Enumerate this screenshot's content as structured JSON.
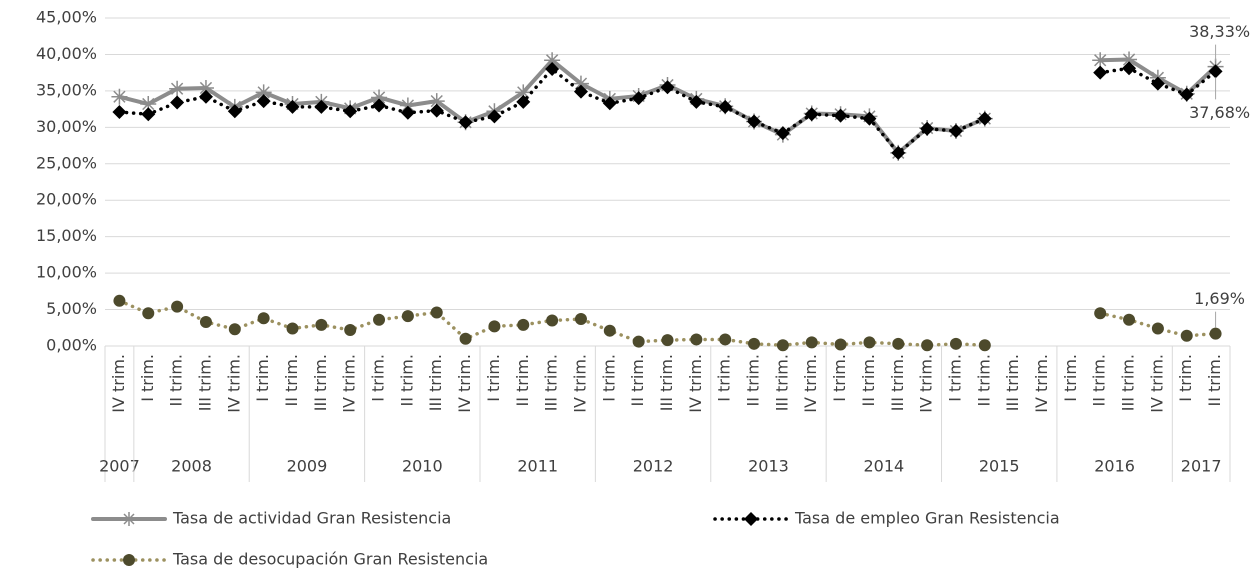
{
  "chart_data": {
    "type": "line",
    "categories": [
      "IV trim.",
      "I trim.",
      "II trim.",
      "III trim.",
      "IV trim.",
      "I trim.",
      "II trim.",
      "III trim.",
      "IV trim.",
      "I trim.",
      "II trim.",
      "III trim.",
      "IV trim.",
      "I trim.",
      "II trim.",
      "III trim.",
      "IV trim.",
      "I trim.",
      "II trim.",
      "III trim.",
      "IV trim.",
      "I trim.",
      "II trim.",
      "III trim.",
      "IV trim.",
      "I trim.",
      "II trim.",
      "III trim.",
      "IV trim.",
      "I trim.",
      "II trim.",
      "III trim.",
      "IV trim.",
      "I trim.",
      "II trim.",
      "III trim.",
      "IV trim.",
      "I trim.",
      "II trim."
    ],
    "year_labels": [
      "2007",
      "2008",
      null,
      null,
      null,
      "2009",
      null,
      null,
      null,
      "2010",
      null,
      null,
      null,
      "2011",
      null,
      null,
      null,
      "2012",
      null,
      null,
      null,
      "2013",
      null,
      null,
      null,
      "2014",
      null,
      null,
      null,
      "2015",
      null,
      null,
      null,
      "2016",
      null,
      null,
      null,
      "2017",
      null
    ],
    "ylim": [
      0,
      45
    ],
    "yticks": [
      {
        "value": 0,
        "label": "0,00%"
      },
      {
        "value": 5,
        "label": "5,00%"
      },
      {
        "value": 10,
        "label": "10,00%"
      },
      {
        "value": 15,
        "label": "15,00%"
      },
      {
        "value": 20,
        "label": "20,00%"
      },
      {
        "value": 25,
        "label": "25,00%"
      },
      {
        "value": 30,
        "label": "30,00%"
      },
      {
        "value": 35,
        "label": "35,00%"
      },
      {
        "value": 40,
        "label": "40,00%"
      },
      {
        "value": 45,
        "label": "45,00%"
      }
    ],
    "grid": true,
    "series": [
      {
        "name": "Tasa de actividad Gran Resistencia",
        "color": "#8c8c8c",
        "values": [
          34.2,
          33.2,
          35.3,
          35.4,
          32.8,
          34.8,
          33.2,
          33.5,
          32.6,
          34.1,
          33.0,
          33.6,
          30.7,
          32.2,
          34.8,
          39.2,
          36.0,
          33.9,
          34.3,
          35.8,
          33.9,
          32.9,
          30.8,
          29.0,
          31.9,
          31.8,
          31.5,
          26.5,
          29.9,
          29.5,
          31.2,
          null,
          null,
          null,
          39.2,
          39.3,
          36.8,
          34.6,
          38.33
        ],
        "value_labels": [
          null,
          null,
          null,
          null,
          null,
          null,
          null,
          null,
          null,
          null,
          null,
          null,
          null,
          null,
          null,
          null,
          null,
          null,
          null,
          null,
          null,
          null,
          null,
          null,
          null,
          null,
          null,
          null,
          null,
          null,
          null,
          null,
          null,
          null,
          null,
          null,
          null,
          null,
          "38,33%"
        ]
      },
      {
        "name": "Tasa de empleo Gran Resistencia",
        "color": "#000000",
        "values": [
          32.1,
          31.8,
          33.4,
          34.2,
          32.2,
          33.6,
          32.8,
          32.8,
          32.2,
          33.0,
          32.0,
          32.3,
          30.7,
          31.5,
          33.5,
          38.0,
          34.9,
          33.3,
          34.0,
          35.5,
          33.5,
          32.8,
          30.8,
          29.2,
          31.8,
          31.6,
          31.2,
          26.5,
          29.8,
          29.5,
          31.2,
          null,
          null,
          null,
          37.5,
          38.1,
          36.0,
          34.5,
          37.68
        ],
        "value_labels": [
          null,
          null,
          null,
          null,
          null,
          null,
          null,
          null,
          null,
          null,
          null,
          null,
          null,
          null,
          null,
          null,
          null,
          null,
          null,
          null,
          null,
          null,
          null,
          null,
          null,
          null,
          null,
          null,
          null,
          null,
          null,
          null,
          null,
          null,
          null,
          null,
          null,
          null,
          "37,68%"
        ]
      },
      {
        "name": "Tasa de desocupación Gran Resistencia",
        "color": "#9c9160",
        "values": [
          6.2,
          4.5,
          5.4,
          3.3,
          2.3,
          3.8,
          2.4,
          2.9,
          2.2,
          3.6,
          4.1,
          4.6,
          1.0,
          2.7,
          2.9,
          3.5,
          3.7,
          2.1,
          0.6,
          0.8,
          0.9,
          0.9,
          0.3,
          0.1,
          0.5,
          0.2,
          0.5,
          0.3,
          0.1,
          0.3,
          0.1,
          null,
          null,
          null,
          4.5,
          3.6,
          2.4,
          1.4,
          1.69
        ],
        "value_labels": [
          null,
          null,
          null,
          null,
          null,
          null,
          null,
          null,
          null,
          null,
          null,
          null,
          null,
          null,
          null,
          null,
          null,
          null,
          null,
          null,
          null,
          null,
          null,
          null,
          null,
          null,
          null,
          null,
          null,
          null,
          null,
          null,
          null,
          null,
          null,
          null,
          null,
          null,
          "1,69%"
        ]
      }
    ]
  }
}
